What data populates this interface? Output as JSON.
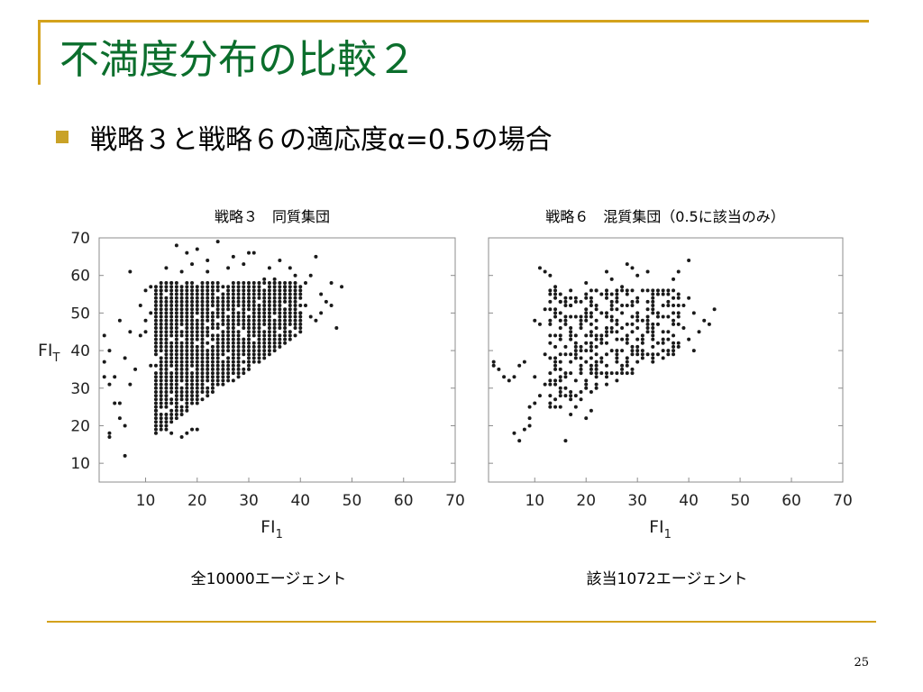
{
  "slide": {
    "title": "不満度分布の比較２",
    "bullet": "戦略３と戦略６の適応度α=0.5の場合",
    "page_number": "25",
    "colors": {
      "title": "#0b6e2c",
      "accent": "#d4a21c",
      "bullet": "#c9a227",
      "points": "#1a1a1a"
    }
  },
  "chart_data": [
    {
      "type": "scatter",
      "title": "戦略３　同質集団",
      "caption": "全10000エージェント",
      "xlabel": "FI",
      "xlabel_sub": "1",
      "ylabel": "FI",
      "ylabel_sub": "T",
      "xlim": [
        1,
        70
      ],
      "ylim": [
        5,
        70
      ],
      "xticks": [
        10,
        20,
        30,
        40,
        50,
        60,
        70
      ],
      "yticks": [
        10,
        20,
        30,
        40,
        50,
        60,
        70
      ],
      "grid": false,
      "region": {
        "xmin": 2,
        "xmax": 48,
        "ymin": 12,
        "ymax": 69
      },
      "dense_core": {
        "x": [
          12,
          40
        ],
        "lower_from": [
          12,
          18
        ],
        "lower_to": [
          40,
          45
        ],
        "upper": 58
      },
      "points": [
        [
          2,
          44
        ],
        [
          2,
          37
        ],
        [
          2,
          33
        ],
        [
          3,
          18
        ],
        [
          3,
          17
        ],
        [
          3,
          31
        ],
        [
          3,
          40
        ],
        [
          4,
          33
        ],
        [
          4,
          26
        ],
        [
          5,
          26
        ],
        [
          5,
          48
        ],
        [
          5,
          22
        ],
        [
          6,
          12
        ],
        [
          6,
          20
        ],
        [
          6,
          38
        ],
        [
          7,
          61
        ],
        [
          7,
          45
        ],
        [
          7,
          31
        ],
        [
          8,
          35
        ],
        [
          9,
          52
        ],
        [
          9,
          44
        ],
        [
          10,
          56
        ],
        [
          11,
          57
        ],
        [
          16,
          68
        ],
        [
          18,
          66
        ],
        [
          20,
          67
        ],
        [
          24,
          69
        ],
        [
          27,
          65
        ],
        [
          30,
          66
        ],
        [
          31,
          66
        ],
        [
          33,
          59
        ],
        [
          35,
          58
        ],
        [
          36,
          64
        ],
        [
          38,
          62
        ],
        [
          39,
          60
        ],
        [
          41,
          58
        ],
        [
          42,
          60
        ],
        [
          43,
          65
        ],
        [
          44,
          55
        ],
        [
          44,
          50
        ],
        [
          45,
          53
        ],
        [
          46,
          52
        ],
        [
          46,
          58
        ],
        [
          47,
          46
        ],
        [
          48,
          57
        ],
        [
          41,
          52
        ],
        [
          40,
          50
        ],
        [
          42,
          49
        ],
        [
          43,
          48
        ],
        [
          39,
          55
        ],
        [
          37,
          57
        ],
        [
          35,
          59
        ],
        [
          34,
          62
        ],
        [
          29,
          63
        ],
        [
          26,
          62
        ],
        [
          22,
          64
        ],
        [
          22,
          61
        ],
        [
          19,
          63
        ],
        [
          17,
          61
        ],
        [
          15,
          58
        ],
        [
          14,
          62
        ],
        [
          13,
          56
        ],
        [
          12,
          53
        ],
        [
          11,
          50
        ],
        [
          10,
          48
        ],
        [
          10,
          45
        ],
        [
          11,
          36
        ],
        [
          12,
          30
        ],
        [
          12,
          24
        ],
        [
          13,
          20
        ],
        [
          14,
          19
        ],
        [
          15,
          18
        ],
        [
          17,
          17
        ],
        [
          18,
          18
        ],
        [
          19,
          19
        ],
        [
          20,
          19
        ]
      ]
    },
    {
      "type": "scatter",
      "title": "戦略６　混質集団（0.5に該当のみ）",
      "caption": "該当1072エージェント",
      "xlabel": "FI",
      "xlabel_sub": "1",
      "xlim": [
        1,
        70
      ],
      "ylim": [
        5,
        70
      ],
      "xticks": [
        10,
        20,
        30,
        40,
        50,
        60,
        70
      ],
      "yticks": [
        10,
        20,
        30,
        40,
        50,
        60,
        70
      ],
      "grid": false,
      "region": {
        "xmin": 2,
        "xmax": 46,
        "ymin": 16,
        "ymax": 64
      },
      "dense_core": {
        "x": [
          13,
          38
        ],
        "lower_from": [
          13,
          24
        ],
        "lower_to": [
          38,
          40
        ],
        "upper": 56
      },
      "points": [
        [
          2,
          37
        ],
        [
          2,
          36
        ],
        [
          3,
          35
        ],
        [
          4,
          33
        ],
        [
          5,
          32
        ],
        [
          6,
          33
        ],
        [
          7,
          36
        ],
        [
          8,
          37
        ],
        [
          9,
          25
        ],
        [
          9,
          22
        ],
        [
          10,
          26
        ],
        [
          10,
          33
        ],
        [
          11,
          28
        ],
        [
          12,
          31
        ],
        [
          12,
          39
        ],
        [
          13,
          42
        ],
        [
          11,
          47
        ],
        [
          12,
          51
        ],
        [
          10,
          48
        ],
        [
          11,
          62
        ],
        [
          12,
          61
        ],
        [
          13,
          60
        ],
        [
          14,
          57
        ],
        [
          15,
          55
        ],
        [
          15,
          53
        ],
        [
          16,
          48
        ],
        [
          17,
          52
        ],
        [
          18,
          54
        ],
        [
          20,
          58
        ],
        [
          22,
          56
        ],
        [
          24,
          61
        ],
        [
          25,
          59
        ],
        [
          27,
          57
        ],
        [
          28,
          63
        ],
        [
          29,
          62
        ],
        [
          30,
          60
        ],
        [
          32,
          61
        ],
        [
          33,
          56
        ],
        [
          35,
          55
        ],
        [
          36,
          52
        ],
        [
          37,
          50
        ],
        [
          38,
          49
        ],
        [
          39,
          46
        ],
        [
          40,
          43
        ],
        [
          41,
          40
        ],
        [
          42,
          45
        ],
        [
          43,
          48
        ],
        [
          44,
          47
        ],
        [
          45,
          51
        ],
        [
          41,
          50
        ],
        [
          39,
          52
        ],
        [
          40,
          54
        ],
        [
          37,
          59
        ],
        [
          38,
          61
        ],
        [
          40,
          64
        ],
        [
          36,
          56
        ],
        [
          6,
          18
        ],
        [
          7,
          16
        ],
        [
          8,
          19
        ],
        [
          9,
          20
        ],
        [
          16,
          16
        ],
        [
          17,
          23
        ],
        [
          18,
          25
        ],
        [
          19,
          27
        ],
        [
          20,
          22
        ],
        [
          21,
          24
        ]
      ]
    }
  ]
}
